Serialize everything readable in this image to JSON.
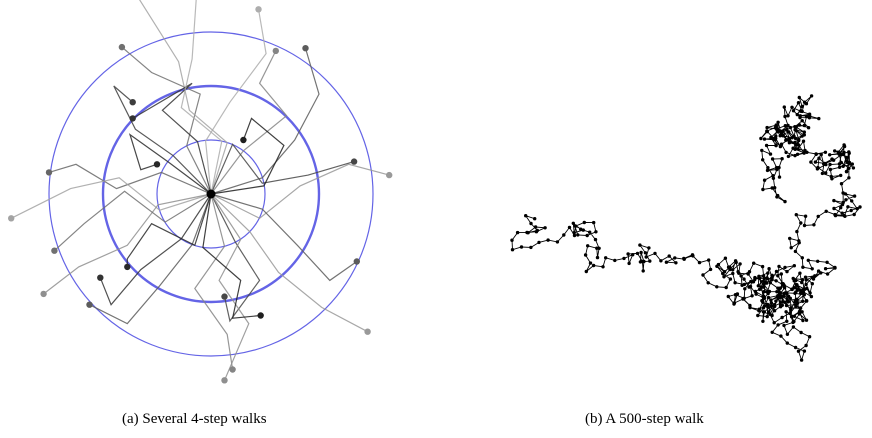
{
  "captions": {
    "a": "(a)  Several 4-step walks",
    "b": "(b)  A 500-step walk"
  },
  "colors": {
    "circle": "#6464e6",
    "walk_b": "#000000",
    "walk_a": "#6e6e6e",
    "origin": "#000000"
  },
  "panel_a": {
    "circle_radii": [
      1,
      2,
      3
    ],
    "walks": [
      {
        "pts": [
          [
            0,
            0
          ],
          [
            -0.1,
            0.98
          ],
          [
            0.35,
            1.7
          ],
          [
            1.02,
            2.6
          ],
          [
            0.88,
            3.42
          ]
        ],
        "shade": 0.85
      },
      {
        "pts": [
          [
            0,
            0
          ],
          [
            -0.45,
            0.89
          ],
          [
            -0.2,
            1.85
          ],
          [
            -1.1,
            2.25
          ],
          [
            -1.65,
            2.72
          ]
        ],
        "shade": 0.55
      },
      {
        "pts": [
          [
            0,
            0
          ],
          [
            0.3,
            0.95
          ],
          [
            -0.4,
            1.55
          ],
          [
            -0.6,
            2.45
          ],
          [
            -1.45,
            3.8
          ]
        ],
        "shade": 0.8
      },
      {
        "pts": [
          [
            0,
            0
          ],
          [
            -0.7,
            0.71
          ],
          [
            -1.4,
            1.2
          ],
          [
            -1.8,
            2.0
          ],
          [
            -1.45,
            1.7
          ]
        ],
        "shade": 0.3
      },
      {
        "pts": [
          [
            0,
            0
          ],
          [
            0.95,
            0.3
          ],
          [
            1.55,
            1.0
          ],
          [
            2.0,
            1.85
          ],
          [
            1.75,
            2.7
          ]
        ],
        "shade": 0.45
      },
      {
        "pts": [
          [
            0,
            0
          ],
          [
            0.6,
            0.8
          ],
          [
            1.4,
            1.45
          ],
          [
            0.9,
            2.05
          ],
          [
            1.2,
            2.65
          ]
        ],
        "shade": 0.65
      },
      {
        "pts": [
          [
            0,
            0
          ],
          [
            -0.25,
            0.97
          ],
          [
            -0.9,
            1.55
          ],
          [
            -0.35,
            2.05
          ],
          [
            -1.45,
            1.4
          ]
        ],
        "shade": 0.25
      },
      {
        "pts": [
          [
            0,
            0
          ],
          [
            0.9,
            -0.45
          ],
          [
            1.65,
            0.15
          ],
          [
            2.55,
            0.55
          ],
          [
            3.3,
            0.35
          ]
        ],
        "shade": 0.75
      },
      {
        "pts": [
          [
            0,
            0
          ],
          [
            0.4,
            0.92
          ],
          [
            0.95,
            0.2
          ],
          [
            1.8,
            0.35
          ],
          [
            2.65,
            0.6
          ]
        ],
        "shade": 0.35
      },
      {
        "pts": [
          [
            0,
            0
          ],
          [
            -0.92,
            0.4
          ],
          [
            -1.75,
            0.1
          ],
          [
            -2.5,
            0.55
          ],
          [
            -3.0,
            0.4
          ]
        ],
        "shade": 0.5
      },
      {
        "pts": [
          [
            0,
            0
          ],
          [
            -0.95,
            -0.3
          ],
          [
            -1.7,
            0.3
          ],
          [
            -2.6,
            0.1
          ],
          [
            -3.7,
            -0.45
          ]
        ],
        "shade": 0.8
      },
      {
        "pts": [
          [
            0,
            0
          ],
          [
            -0.8,
            0.6
          ],
          [
            -1.5,
            1.1
          ],
          [
            -1.3,
            0.45
          ],
          [
            -1.0,
            0.55
          ]
        ],
        "shade": 0.2
      },
      {
        "pts": [
          [
            0,
            0
          ],
          [
            0.45,
            -0.89
          ],
          [
            0.9,
            -1.6
          ],
          [
            0.35,
            -2.35
          ],
          [
            0.25,
            -1.9
          ]
        ],
        "shade": 0.35
      },
      {
        "pts": [
          [
            0,
            0
          ],
          [
            -0.55,
            -0.83
          ],
          [
            -1.3,
            -1.4
          ],
          [
            -1.85,
            -2.05
          ],
          [
            -2.05,
            -1.55
          ]
        ],
        "shade": 0.25
      },
      {
        "pts": [
          [
            0,
            0
          ],
          [
            0.95,
            -0.28
          ],
          [
            1.6,
            -0.95
          ],
          [
            2.2,
            -1.6
          ],
          [
            2.7,
            -1.25
          ]
        ],
        "shade": 0.45
      },
      {
        "pts": [
          [
            0,
            0
          ],
          [
            0.25,
            -0.97
          ],
          [
            -0.3,
            -1.75
          ],
          [
            0.3,
            -2.6
          ],
          [
            0.4,
            -3.25
          ]
        ],
        "shade": 0.65
      },
      {
        "pts": [
          [
            0,
            0
          ],
          [
            -0.35,
            -0.94
          ],
          [
            -0.95,
            -1.7
          ],
          [
            -1.55,
            -2.4
          ],
          [
            -2.25,
            -2.05
          ]
        ],
        "shade": 0.45
      },
      {
        "pts": [
          [
            0,
            0
          ],
          [
            0.72,
            -0.7
          ],
          [
            1.25,
            -1.45
          ],
          [
            2.05,
            -2.1
          ],
          [
            2.9,
            -2.55
          ]
        ],
        "shade": 0.75
      },
      {
        "pts": [
          [
            0,
            0
          ],
          [
            -0.98,
            -0.2
          ],
          [
            -1.55,
            -0.95
          ],
          [
            -2.45,
            -1.35
          ],
          [
            -3.1,
            -1.85
          ]
        ],
        "shade": 0.7
      },
      {
        "pts": [
          [
            0,
            0
          ],
          [
            -0.3,
            -0.95
          ],
          [
            -1.1,
            -0.55
          ],
          [
            -1.55,
            -1.2
          ],
          [
            -1.55,
            -1.35
          ]
        ],
        "shade": 0.2
      },
      {
        "pts": [
          [
            0,
            0
          ],
          [
            0.55,
            -0.84
          ],
          [
            0.15,
            -1.6
          ],
          [
            0.7,
            -2.4
          ],
          [
            0.25,
            -3.45
          ]
        ],
        "shade": 0.7
      },
      {
        "pts": [
          [
            0,
            0
          ],
          [
            0.98,
            0.15
          ],
          [
            1.35,
            0.9
          ],
          [
            0.75,
            1.4
          ],
          [
            0.6,
            1.0
          ]
        ],
        "shade": 0.15
      },
      {
        "pts": [
          [
            0,
            0
          ],
          [
            -0.15,
            -0.99
          ],
          [
            0.55,
            -1.6
          ],
          [
            0.4,
            -2.3
          ],
          [
            0.92,
            -2.25
          ]
        ],
        "shade": 0.15
      },
      {
        "pts": [
          [
            0,
            0
          ],
          [
            0.2,
            0.98
          ],
          [
            -0.55,
            1.6
          ],
          [
            -0.35,
            2.5
          ],
          [
            -0.25,
            3.95
          ]
        ],
        "shade": 0.85
      },
      {
        "pts": [
          [
            0,
            0
          ],
          [
            -0.85,
            -0.52
          ],
          [
            -1.6,
            0.05
          ],
          [
            -2.35,
            -0.55
          ],
          [
            -2.9,
            -1.05
          ]
        ],
        "shade": 0.55
      }
    ]
  },
  "panel_b": {
    "steps": 500,
    "seed": 20141,
    "step_length": 1
  }
}
